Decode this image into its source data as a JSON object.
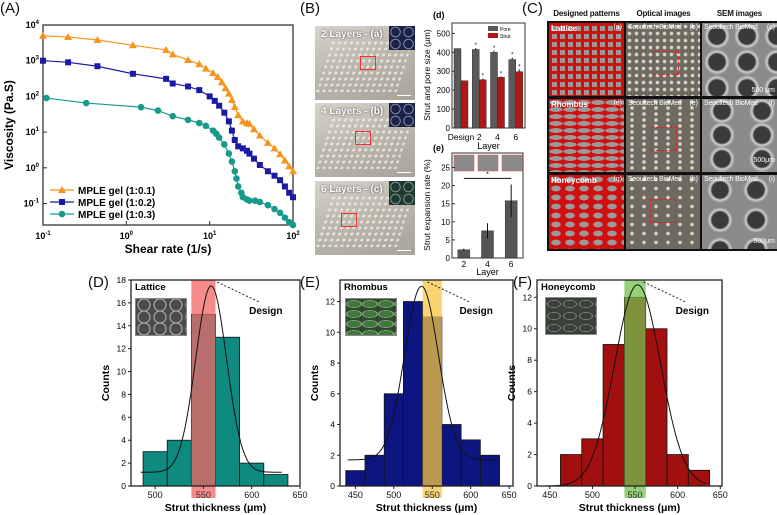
{
  "panel_labels": {
    "A": "(A)",
    "B": "(B)",
    "C": "(C)",
    "D": "(D)",
    "E": "(E)",
    "F": "(F)",
    "d": "(d)",
    "e": "(e)"
  },
  "panel_b": {
    "images": [
      {
        "caption": "2 Layers - (a)"
      },
      {
        "caption": "4 Layers - (b)"
      },
      {
        "caption": "6 Layers - (c)"
      }
    ]
  },
  "panel_c": {
    "headers": [
      "Designed patterns",
      "Optical images",
      "SEM images"
    ],
    "rows": [
      {
        "pattern": "Lattice",
        "cells": [
          {
            "left": "Lattice",
            "right": "(a)"
          },
          {
            "left": "Seoultech BioMed",
            "right": "(b)"
          },
          {
            "left": "Seoultech BioMed",
            "right": "(c)"
          }
        ],
        "scale": "500 μm"
      },
      {
        "pattern": "Rhombus",
        "cells": [
          {
            "left": "Rhombus",
            "right": "(d)"
          },
          {
            "left": "Seoultech BioMed",
            "right": "(e)"
          },
          {
            "left": "Seoultech BioMed",
            "right": "(f)"
          }
        ],
        "scale": "500μm"
      },
      {
        "pattern": "Honeycomb",
        "cells": [
          {
            "left": "Honeycomb",
            "right": "(g)"
          },
          {
            "left": "Seoultech BioMed",
            "right": "(h)"
          },
          {
            "left": "Seoultech BioMed",
            "right": "(i)"
          }
        ],
        "scale": "500μm"
      }
    ]
  },
  "colors": {
    "orange": "#f7941d",
    "blue": "#1a1aa6",
    "teal": "#179a8c",
    "d_pore": "#5a5a5a",
    "d_strut": "#b01818",
    "e_bar": "#555555",
    "hist_D": "#0f8a80",
    "hist_E": "#0d1680",
    "hist_F": "#a10f0f",
    "band_D": "#f26464",
    "band_E": "#f6c643",
    "band_F": "#74c04c"
  },
  "chart_data": [
    {
      "id": "A",
      "type": "line",
      "xscale": "log",
      "yscale": "log",
      "xlabel": "Shear rate (1/s)",
      "ylabel": "Viscosity (Pa.S)",
      "xlim": [
        0.1,
        100
      ],
      "ylim": [
        0.025,
        10000
      ],
      "xticks": [
        {
          "base": "10",
          "exp": "-1",
          "v": 0.1
        },
        {
          "base": "10",
          "exp": "0",
          "v": 1
        },
        {
          "base": "10",
          "exp": "1",
          "v": 10
        },
        {
          "base": "10",
          "exp": "2",
          "v": 100
        }
      ],
      "yticks": [
        {
          "base": "10",
          "exp": "4",
          "v": 10000
        },
        {
          "base": "10",
          "exp": "3",
          "v": 1000
        },
        {
          "base": "10",
          "exp": "2",
          "v": 100
        },
        {
          "base": "10",
          "exp": "1",
          "v": 10
        },
        {
          "base": "10",
          "exp": "0",
          "v": 1
        },
        {
          "base": "10",
          "exp": "-1",
          "v": 0.1
        }
      ],
      "legend_position": "bottom-left",
      "series": [
        {
          "name": "MPLE gel (1:0.1)",
          "marker": "triangle",
          "color": "#f7941d",
          "x": [
            0.1,
            0.2,
            0.45,
            1.2,
            3,
            3.6,
            5.5,
            7.5,
            9,
            11,
            12.5,
            14,
            15.5,
            17,
            18.5,
            20,
            22,
            25,
            28,
            30,
            34,
            40,
            50,
            60,
            70,
            80,
            90,
            100
          ],
          "y": [
            5000,
            4600,
            3800,
            2700,
            2000,
            1500,
            1050,
            800,
            600,
            450,
            350,
            250,
            170,
            120,
            80,
            50,
            30,
            20,
            18,
            17,
            12,
            8,
            5,
            3.5,
            2.4,
            1.6,
            1.1,
            0.8
          ]
        },
        {
          "name": "MPLE gel (1:0.2)",
          "marker": "square",
          "color": "#1a1aa6",
          "x": [
            0.1,
            0.2,
            0.45,
            1.2,
            3,
            3.6,
            5.5,
            7.5,
            10,
            11.5,
            13,
            15,
            17,
            18.5,
            20,
            22,
            25,
            28,
            30,
            34,
            40,
            50,
            60,
            70,
            80,
            90,
            100
          ],
          "y": [
            1000,
            900,
            700,
            430,
            310,
            230,
            190,
            150,
            100,
            75,
            55,
            35,
            20,
            11,
            6,
            4,
            3.5,
            3,
            2.5,
            1.8,
            1.2,
            0.8,
            0.6,
            0.45,
            0.3,
            0.2,
            0.15
          ]
        },
        {
          "name": "MPLE gel (1:0.3)",
          "marker": "circle",
          "color": "#179a8c",
          "x": [
            0.11,
            0.33,
            1.5,
            2.4,
            3.6,
            5.5,
            7.5,
            9,
            11,
            12,
            13,
            15,
            17,
            18.5,
            20,
            21,
            22,
            24,
            25,
            28,
            30,
            35,
            40,
            50,
            60,
            70,
            80,
            90,
            100
          ],
          "y": [
            90,
            65,
            50,
            40,
            28,
            22,
            18,
            15,
            11,
            9,
            7,
            4.5,
            2.5,
            1.5,
            0.8,
            0.5,
            0.3,
            0.2,
            0.15,
            0.13,
            0.12,
            0.12,
            0.11,
            0.09,
            0.07,
            0.055,
            0.04,
            0.03,
            0.025
          ]
        }
      ]
    },
    {
      "id": "d",
      "type": "bar",
      "ylabel": "Strut and pore size (μm)",
      "xlabel": "Layer",
      "ylim": [
        0,
        555
      ],
      "categories": [
        "Design",
        "2",
        "4",
        "6"
      ],
      "yticks": [
        0,
        100,
        200,
        300,
        400,
        500
      ],
      "series": [
        {
          "name": "Pore",
          "values": [
            420,
            415,
            400,
            362
          ],
          "errors": [
            0,
            8,
            8,
            10
          ]
        },
        {
          "name": "Strut",
          "values": [
            250,
            255,
            268,
            298
          ],
          "errors": [
            0,
            6,
            5,
            12
          ]
        }
      ],
      "legend_position": "top-right",
      "annotations": [
        "*"
      ]
    },
    {
      "id": "e",
      "type": "bar",
      "ylabel": "Strut expansion rate (%)",
      "xlabel": "Layer",
      "ylim": [
        0,
        29
      ],
      "categories": [
        "2",
        "4",
        "6"
      ],
      "yticks": [
        0,
        5,
        10,
        15,
        20,
        25
      ],
      "values": [
        2.3,
        7.5,
        15.8
      ],
      "errors": [
        0.3,
        2.1,
        4.5
      ],
      "annotation": "*"
    },
    {
      "id": "D",
      "type": "bar",
      "title": "Lattice",
      "xlabel": "Strut thickness (μm)",
      "ylabel": "Counts",
      "xlim": [
        475,
        650
      ],
      "ylim": [
        0,
        18
      ],
      "xticks": [
        500,
        550,
        600,
        650
      ],
      "yticks": [
        0,
        2,
        4,
        6,
        8,
        10,
        12,
        14,
        16,
        18
      ],
      "bin_width": 25,
      "bin_centers": [
        500,
        525,
        550,
        575,
        600,
        625
      ],
      "counts": [
        3,
        4,
        15,
        13,
        2,
        1
      ],
      "fit": {
        "mean": 558,
        "sigma": 16,
        "amplitude": 16.3,
        "offset": 1.2
      },
      "design_value": 550,
      "annotation": "Design"
    },
    {
      "id": "E",
      "type": "bar",
      "title": "Rhombus",
      "xlabel": "Strut thickness (μm)",
      "ylabel": "Counts",
      "xlim": [
        430,
        655
      ],
      "ylim": [
        0,
        13.4
      ],
      "xticks": [
        450,
        500,
        550,
        600,
        650
      ],
      "yticks": [
        0,
        2,
        4,
        6,
        8,
        10,
        12
      ],
      "bin_width": 25,
      "bin_centers": [
        450,
        475,
        500,
        525,
        550,
        575,
        600,
        625
      ],
      "counts": [
        1,
        2,
        6,
        12,
        11,
        4,
        3,
        2
      ],
      "fit": {
        "mean": 536,
        "sigma": 22,
        "amplitude": 11.3,
        "offset": 1.7
      },
      "design_value": 550,
      "annotation": "Design"
    },
    {
      "id": "F",
      "type": "bar",
      "title": "Honeycomb",
      "xlabel": "Strut thickness (μm)",
      "ylabel": "Counts",
      "xlim": [
        435,
        652
      ],
      "ylim": [
        0,
        13.1
      ],
      "xticks": [
        450,
        500,
        550,
        600,
        650
      ],
      "yticks": [
        0,
        2,
        4,
        6,
        8,
        10,
        12
      ],
      "bin_width": 25,
      "bin_centers": [
        475,
        500,
        525,
        550,
        575,
        600,
        625
      ],
      "counts": [
        2,
        3,
        9,
        12,
        10,
        2,
        1
      ],
      "fit": {
        "mean": 553,
        "sigma": 27,
        "amplitude": 12.8,
        "offset": 0
      },
      "design_value": 550,
      "annotation": "Design"
    }
  ]
}
